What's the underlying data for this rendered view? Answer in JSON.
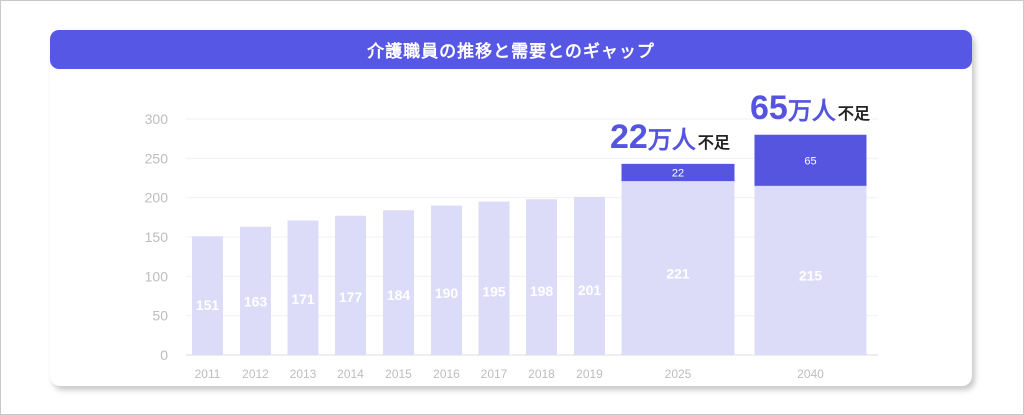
{
  "chart_data": {
    "type": "bar",
    "title": "介護職員の推移と需要とのギャップ",
    "categories": [
      "2011",
      "2012",
      "2013",
      "2014",
      "2015",
      "2016",
      "2017",
      "2018",
      "2019",
      "2025",
      "2040"
    ],
    "series": [
      {
        "values": [
          151,
          163,
          171,
          177,
          184,
          190,
          195,
          198,
          201,
          221,
          215
        ]
      },
      {
        "values": [
          null,
          null,
          null,
          null,
          null,
          null,
          null,
          null,
          null,
          22,
          65
        ]
      }
    ],
    "y_ticks": [
      "0",
      "50",
      "100",
      "150",
      "200",
      "250",
      "300"
    ],
    "ylim": [
      0,
      300
    ],
    "xlabel": "",
    "ylabel": "",
    "grid": true,
    "callouts": [
      {
        "number": "22",
        "unit": "万人",
        "suffix": "不足"
      },
      {
        "number": "65",
        "unit": "万人",
        "suffix": "不足"
      }
    ]
  },
  "colors": {
    "banner": "#5757e6",
    "base_bar": "#dcdcf8",
    "gap_bar": "#5555e0",
    "axis_text": "#bdbdbd",
    "gridline": "#f0f0f0",
    "accent_text": "#5454e0"
  }
}
